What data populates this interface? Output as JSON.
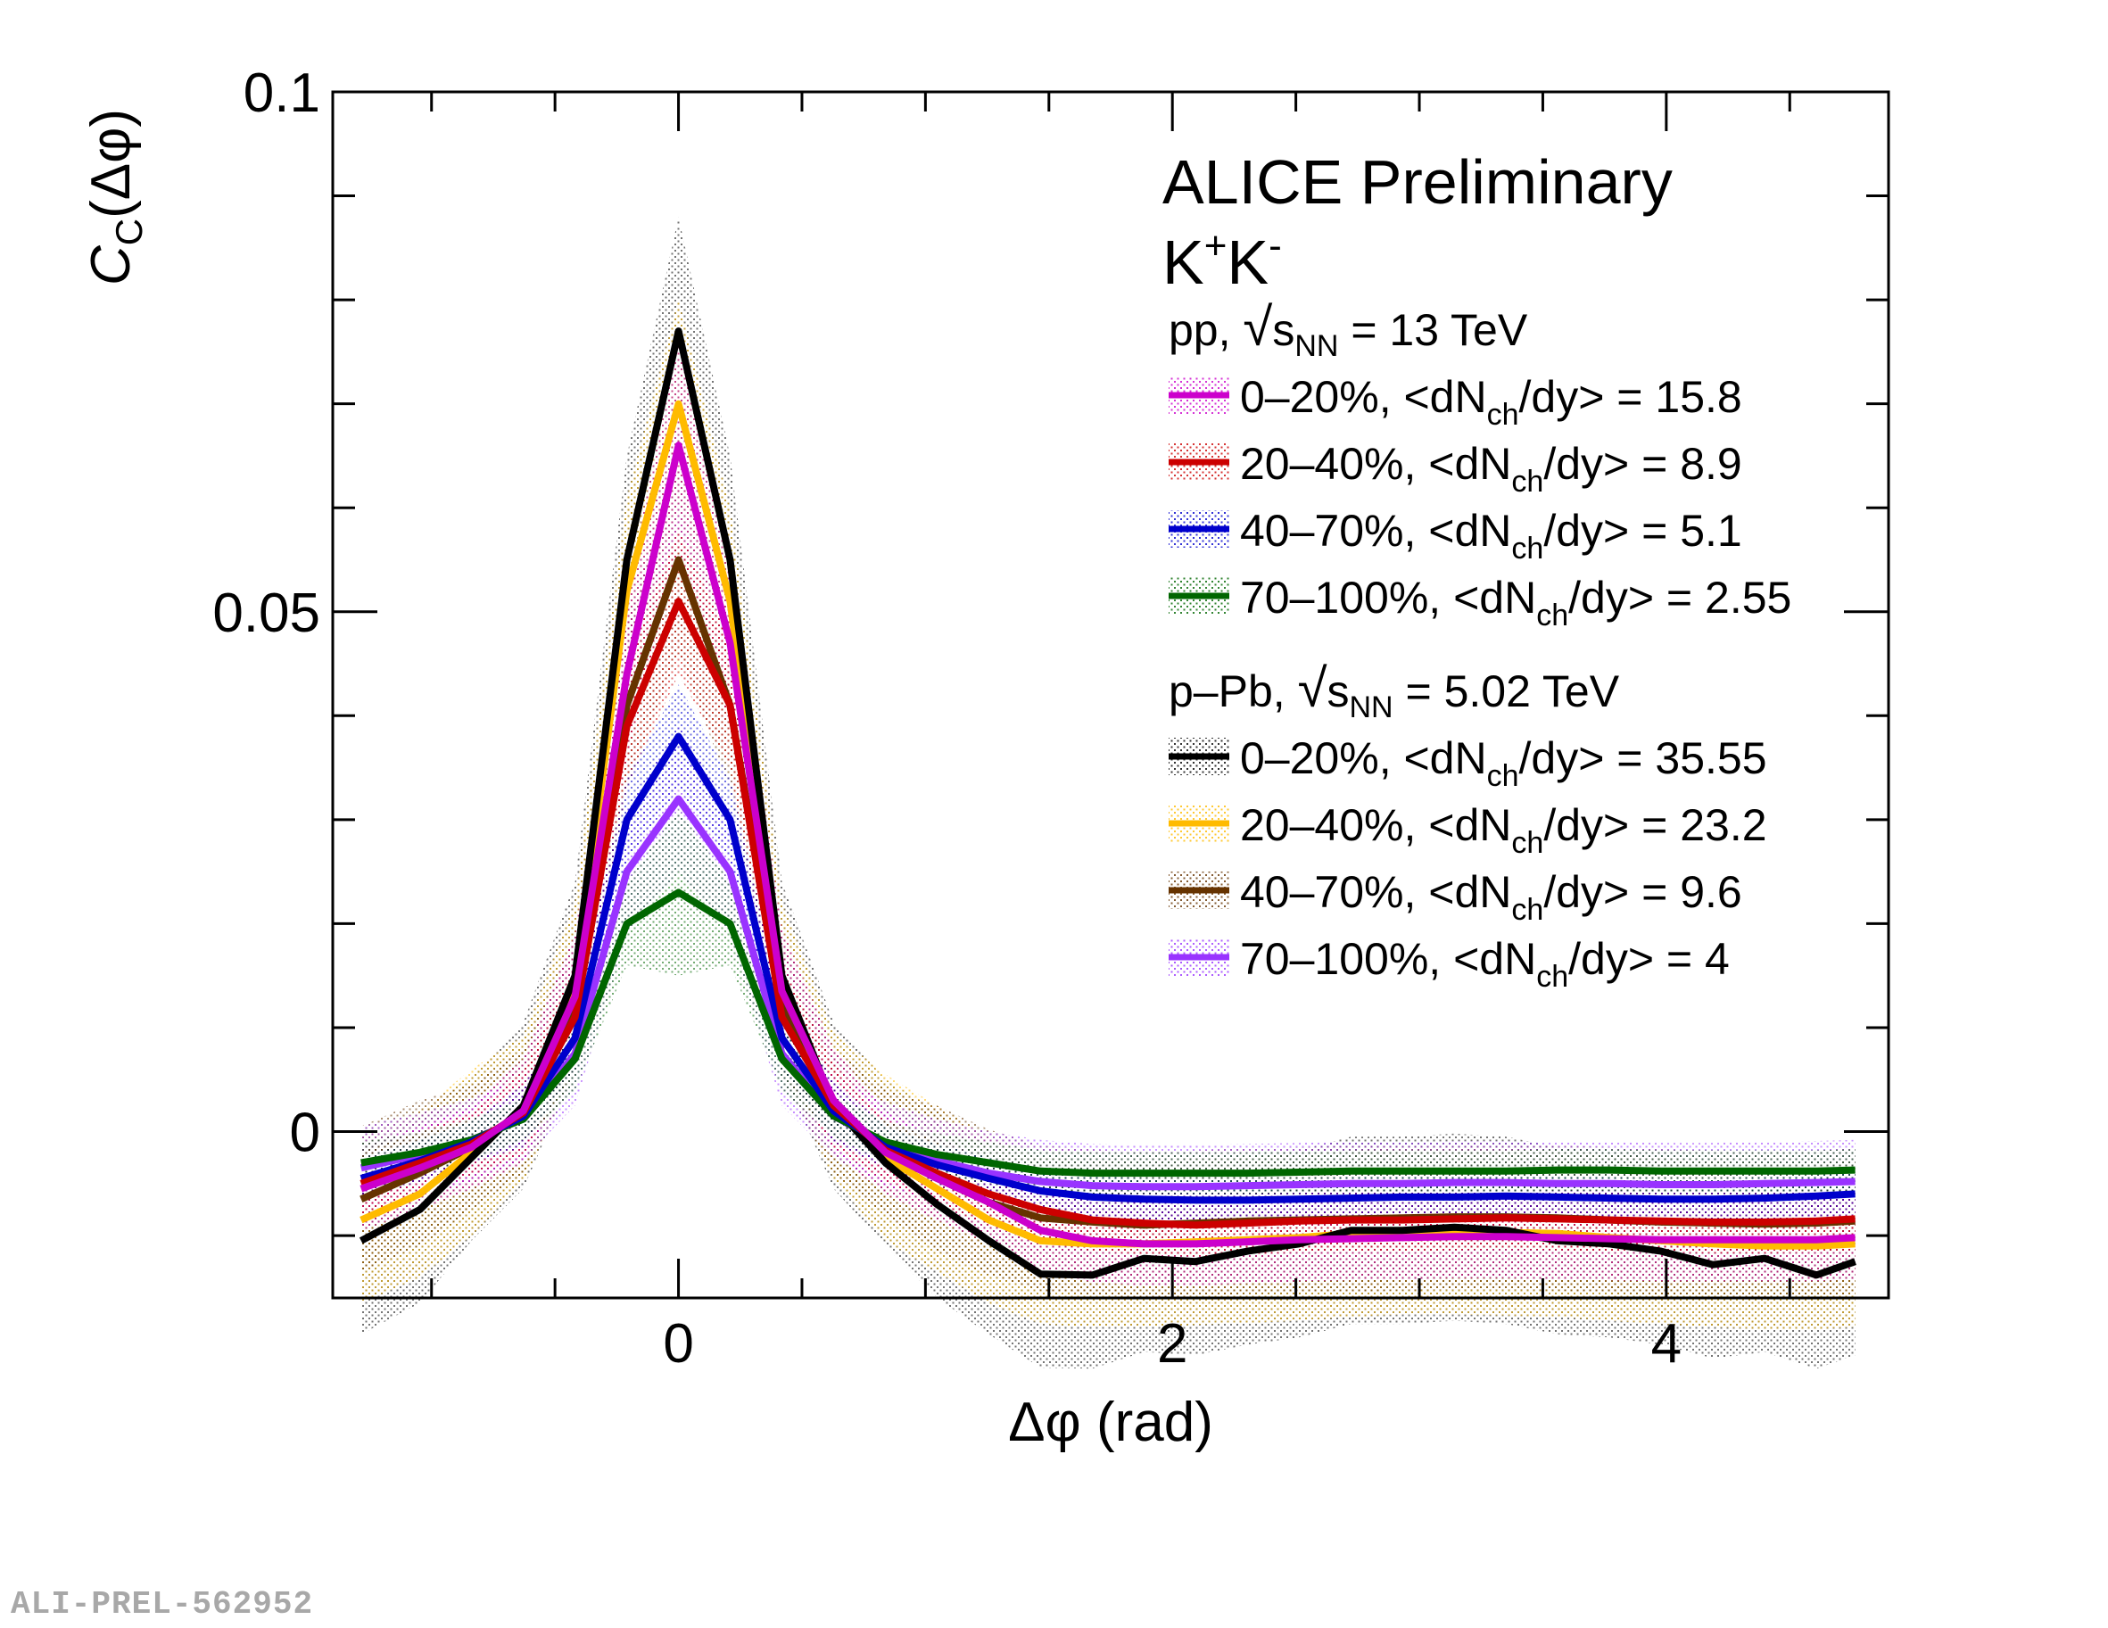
{
  "chart_data": {
    "type": "line",
    "title": "ALICE Preliminary",
    "subtitle_particle": "K",
    "subtitle_sup1": "+",
    "subtitle_particle2": "K",
    "subtitle_sup2": "-",
    "xlabel": "Δφ (rad)",
    "ylabel_main": "C",
    "ylabel_sub": "C",
    "ylabel_tail": "(Δφ)",
    "xlim": [
      -1.4,
      4.9
    ],
    "ylim": [
      -0.016,
      0.1
    ],
    "xticks": [
      0,
      2,
      4
    ],
    "xtick_labels": [
      "0",
      "2",
      "4"
    ],
    "yticks": [
      0,
      0.05,
      0.1
    ],
    "ytick_labels": [
      "0",
      "0.05",
      "0.1"
    ],
    "x": [
      -1.285,
      -1.047,
      -0.838,
      -0.628,
      -0.419,
      -0.209,
      0,
      0.209,
      0.419,
      0.628,
      0.838,
      1.047,
      1.257,
      1.466,
      1.676,
      1.885,
      2.094,
      2.304,
      2.513,
      2.723,
      2.932,
      3.142,
      3.351,
      3.56,
      3.77,
      3.979,
      4.189,
      4.398,
      4.608,
      4.765
    ],
    "groups": [
      {
        "label_prefix": "pp, ",
        "sqrt": "s",
        "sqrt_sub": "NN",
        "label_suffix": " = 13 TeV",
        "series": [
          {
            "name": "0–20%, <dN",
            "sub": "ch",
            "tail": "/dy> = 15.8",
            "color": "#cc00cc",
            "values": [
              -0.0055,
              -0.0035,
              -0.0015,
              0.002,
              0.013,
              0.044,
              0.066,
              0.047,
              0.0135,
              0.003,
              -0.002,
              -0.0045,
              -0.0068,
              -0.0095,
              -0.0105,
              -0.0108,
              -0.0108,
              -0.0106,
              -0.0104,
              -0.0103,
              -0.0102,
              -0.0101,
              -0.0101,
              -0.0102,
              -0.0103,
              -0.0104,
              -0.0104,
              -0.0104,
              -0.0104,
              -0.0102
            ],
            "band": [
              0.004,
              0.004,
              0.004,
              0.005,
              0.006,
              0.008,
              0.01,
              0.008,
              0.006,
              0.005,
              0.004,
              0.004,
              0.004,
              0.004,
              0.004,
              0.004,
              0.004,
              0.004,
              0.004,
              0.004,
              0.004,
              0.004,
              0.004,
              0.004,
              0.004,
              0.004,
              0.004,
              0.004,
              0.004,
              0.004
            ]
          },
          {
            "name": "20–40%, <dN",
            "sub": "ch",
            "tail": "/dy> = 8.9",
            "color": "#cc0000",
            "values": [
              -0.005,
              -0.003,
              -0.0012,
              0.0018,
              0.011,
              0.039,
              0.051,
              0.041,
              0.011,
              0.0025,
              -0.0018,
              -0.004,
              -0.006,
              -0.0075,
              -0.0085,
              -0.0088,
              -0.009,
              -0.0088,
              -0.0086,
              -0.0085,
              -0.0085,
              -0.0084,
              -0.0083,
              -0.0084,
              -0.0085,
              -0.0086,
              -0.0087,
              -0.0087,
              -0.0086,
              -0.0084
            ],
            "band": [
              0.003,
              0.003,
              0.003,
              0.004,
              0.005,
              0.006,
              0.007,
              0.006,
              0.005,
              0.004,
              0.003,
              0.003,
              0.003,
              0.003,
              0.003,
              0.003,
              0.003,
              0.003,
              0.003,
              0.003,
              0.003,
              0.003,
              0.003,
              0.003,
              0.003,
              0.003,
              0.003,
              0.003,
              0.003,
              0.003
            ]
          },
          {
            "name": "40–70%, <dN",
            "sub": "ch",
            "tail": "/dy> = 5.1",
            "color": "#0000cc",
            "values": [
              -0.0045,
              -0.0028,
              -0.001,
              0.0015,
              0.009,
              0.03,
              0.038,
              0.03,
              0.009,
              0.002,
              -0.0015,
              -0.0032,
              -0.0045,
              -0.0057,
              -0.0063,
              -0.0065,
              -0.0066,
              -0.0066,
              -0.0065,
              -0.0064,
              -0.0063,
              -0.0063,
              -0.0062,
              -0.0063,
              -0.0064,
              -0.0065,
              -0.0065,
              -0.0064,
              -0.0062,
              -0.006
            ],
            "band": [
              0.002,
              0.002,
              0.002,
              0.003,
              0.003,
              0.004,
              0.005,
              0.004,
              0.003,
              0.003,
              0.002,
              0.002,
              0.002,
              0.002,
              0.002,
              0.002,
              0.002,
              0.002,
              0.002,
              0.002,
              0.002,
              0.002,
              0.002,
              0.002,
              0.002,
              0.002,
              0.002,
              0.002,
              0.002,
              0.002
            ]
          },
          {
            "name": "70–100%, <dN",
            "sub": "ch",
            "tail": "/dy> = 2.55",
            "color": "#006600",
            "values": [
              -0.003,
              -0.002,
              -0.0008,
              0.0012,
              0.007,
              0.02,
              0.023,
              0.02,
              0.007,
              0.0015,
              -0.001,
              -0.0022,
              -0.003,
              -0.0038,
              -0.004,
              -0.004,
              -0.004,
              -0.004,
              -0.0039,
              -0.0038,
              -0.0038,
              -0.0038,
              -0.0038,
              -0.0037,
              -0.0037,
              -0.0038,
              -0.0038,
              -0.0038,
              -0.0038,
              -0.0037
            ],
            "band": [
              0.002,
              0.002,
              0.002,
              0.002,
              0.003,
              0.004,
              0.008,
              0.004,
              0.003,
              0.002,
              0.002,
              0.002,
              0.002,
              0.002,
              0.002,
              0.002,
              0.002,
              0.002,
              0.002,
              0.002,
              0.002,
              0.002,
              0.002,
              0.002,
              0.002,
              0.002,
              0.002,
              0.002,
              0.002,
              0.002
            ]
          }
        ]
      },
      {
        "label_prefix": "p–Pb, ",
        "sqrt": "s",
        "sqrt_sub": "NN",
        "label_suffix": " = 5.02 TeV",
        "series": [
          {
            "name": "0–20%, <dN",
            "sub": "ch",
            "tail": "/dy> = 35.55",
            "color": "#000000",
            "values": [
              -0.0105,
              -0.0075,
              -0.0025,
              0.0025,
              0.015,
              0.055,
              0.077,
              0.055,
              0.015,
              0.0025,
              -0.003,
              -0.007,
              -0.0105,
              -0.0137,
              -0.0138,
              -0.0122,
              -0.0125,
              -0.0115,
              -0.0108,
              -0.0095,
              -0.0095,
              -0.0092,
              -0.0095,
              -0.0105,
              -0.0108,
              -0.0115,
              -0.0128,
              -0.0122,
              -0.0138,
              -0.0125
            ],
            "band": [
              0.009,
              0.009,
              0.008,
              0.008,
              0.009,
              0.01,
              0.011,
              0.01,
              0.009,
              0.008,
              0.008,
              0.009,
              0.009,
              0.009,
              0.009,
              0.009,
              0.009,
              0.009,
              0.009,
              0.009,
              0.009,
              0.009,
              0.009,
              0.009,
              0.009,
              0.009,
              0.009,
              0.009,
              0.009,
              0.009
            ]
          },
          {
            "name": "20–40%, <dN",
            "sub": "ch",
            "tail": "/dy> = 23.2",
            "color": "#ffbb00",
            "values": [
              -0.0085,
              -0.006,
              -0.002,
              0.0022,
              0.014,
              0.052,
              0.07,
              0.051,
              0.014,
              0.0025,
              -0.0025,
              -0.0055,
              -0.0085,
              -0.0105,
              -0.0108,
              -0.0108,
              -0.0106,
              -0.0104,
              -0.0102,
              -0.0098,
              -0.0096,
              -0.0096,
              -0.0097,
              -0.0098,
              -0.0102,
              -0.0105,
              -0.0108,
              -0.011,
              -0.011,
              -0.0108
            ],
            "band": [
              0.008,
              0.008,
              0.008,
              0.007,
              0.008,
              0.009,
              0.01,
              0.009,
              0.008,
              0.007,
              0.008,
              0.008,
              0.008,
              0.008,
              0.008,
              0.008,
              0.008,
              0.008,
              0.008,
              0.008,
              0.008,
              0.008,
              0.008,
              0.008,
              0.008,
              0.008,
              0.008,
              0.008,
              0.008,
              0.008
            ]
          },
          {
            "name": "40–70%, <dN",
            "sub": "ch",
            "tail": "/dy> = 9.6",
            "color": "#663300",
            "values": [
              -0.0065,
              -0.004,
              -0.0015,
              0.002,
              0.012,
              0.041,
              0.055,
              0.041,
              0.012,
              0.002,
              -0.002,
              -0.0045,
              -0.0068,
              -0.0083,
              -0.0087,
              -0.009,
              -0.0088,
              -0.0086,
              -0.0085,
              -0.0084,
              -0.0083,
              -0.0082,
              -0.0082,
              -0.0083,
              -0.0085,
              -0.0087,
              -0.0088,
              -0.0089,
              -0.0088,
              -0.0086
            ],
            "band": [
              0.007,
              0.007,
              0.006,
              0.006,
              0.007,
              0.008,
              0.009,
              0.008,
              0.007,
              0.006,
              0.006,
              0.007,
              0.007,
              0.007,
              0.007,
              0.007,
              0.007,
              0.007,
              0.007,
              0.007,
              0.007,
              0.007,
              0.007,
              0.007,
              0.007,
              0.007,
              0.007,
              0.007,
              0.007,
              0.007
            ]
          },
          {
            "name": "70–100%, <dN",
            "sub": "ch",
            "tail": "/dy> = 4",
            "color": "#9933ff",
            "values": [
              -0.0035,
              -0.0022,
              -0.0008,
              0.0013,
              0.0075,
              0.025,
              0.032,
              0.025,
              0.0075,
              0.0015,
              -0.0012,
              -0.0028,
              -0.004,
              -0.0048,
              -0.0052,
              -0.0053,
              -0.0053,
              -0.0052,
              -0.0051,
              -0.005,
              -0.005,
              -0.0049,
              -0.0049,
              -0.005,
              -0.005,
              -0.0051,
              -0.0051,
              -0.005,
              -0.0049,
              -0.0048
            ],
            "band": [
              0.004,
              0.004,
              0.004,
              0.004,
              0.005,
              0.006,
              0.007,
              0.006,
              0.005,
              0.004,
              0.004,
              0.004,
              0.004,
              0.004,
              0.004,
              0.004,
              0.004,
              0.004,
              0.004,
              0.004,
              0.004,
              0.004,
              0.004,
              0.004,
              0.004,
              0.004,
              0.004,
              0.004,
              0.004,
              0.004
            ]
          }
        ]
      }
    ]
  },
  "footer": {
    "id_label": "ALI-PREL-562952"
  }
}
